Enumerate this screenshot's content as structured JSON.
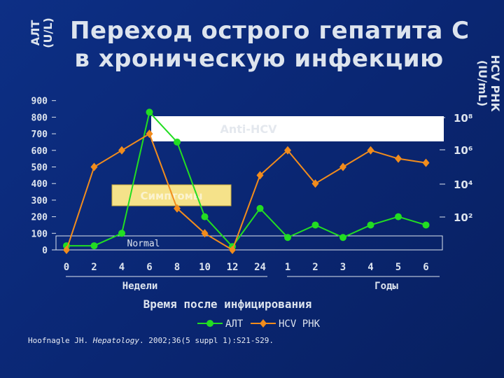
{
  "title_lines": [
    "Переход острого гепатита C",
    "в хроническую инфекцию"
  ],
  "left_axis_label": [
    "АЛТ",
    "(U/L)"
  ],
  "right_axis_label": [
    "HCV РНК",
    "(IU/mL)"
  ],
  "citation_prefix": "Hoofnagle JH. ",
  "citation_journal": "Hepatology",
  "citation_rest": ". 2002;36(5 suppl 1):S21-S29.",
  "colors": {
    "alt": "#22dd22",
    "hcv": "#f28c1c",
    "background": "#0a2a7a",
    "box": "#ffffff",
    "symptoms": "#f5e28a"
  },
  "chart_data": {
    "type": "line",
    "x": [
      "0",
      "2",
      "4",
      "6",
      "8",
      "10",
      "12",
      "24",
      "1",
      "2",
      "3",
      "4",
      "5",
      "6"
    ],
    "x_groups": [
      {
        "label": "Недели",
        "ticks": [
          "0",
          "2",
          "4",
          "6",
          "8",
          "10",
          "12",
          "24"
        ]
      },
      {
        "label": "Годы",
        "ticks": [
          "1",
          "2",
          "3",
          "4",
          "5",
          "6"
        ]
      }
    ],
    "xlabel": "Время после инфицирования",
    "ylabel": "АЛТ (U/L)",
    "ylim": [
      0,
      900
    ],
    "y_ticks": [
      0,
      100,
      200,
      300,
      400,
      500,
      600,
      700,
      800,
      900
    ],
    "y2label": "HCV РНК (IU/mL)",
    "y2_ticks": [
      "10²",
      "10⁴",
      "10⁶",
      "10⁸"
    ],
    "series": [
      {
        "name": "АЛТ",
        "axis": "left",
        "values": [
          25,
          25,
          100,
          830,
          650,
          200,
          20,
          250,
          75,
          150,
          75,
          150,
          200,
          150
        ]
      },
      {
        "name": "HCV РНК",
        "axis": "left",
        "values": [
          0,
          500,
          600,
          700,
          250,
          100,
          0,
          450,
          600,
          400,
          500,
          600,
          550,
          525
        ]
      }
    ],
    "annotations": [
      {
        "text": "Anti-HCV",
        "type": "bar"
      },
      {
        "text": "Симптомы",
        "type": "bar"
      },
      {
        "text": "Normal",
        "type": "band"
      }
    ],
    "legend": "bottom-center",
    "grid": false
  }
}
